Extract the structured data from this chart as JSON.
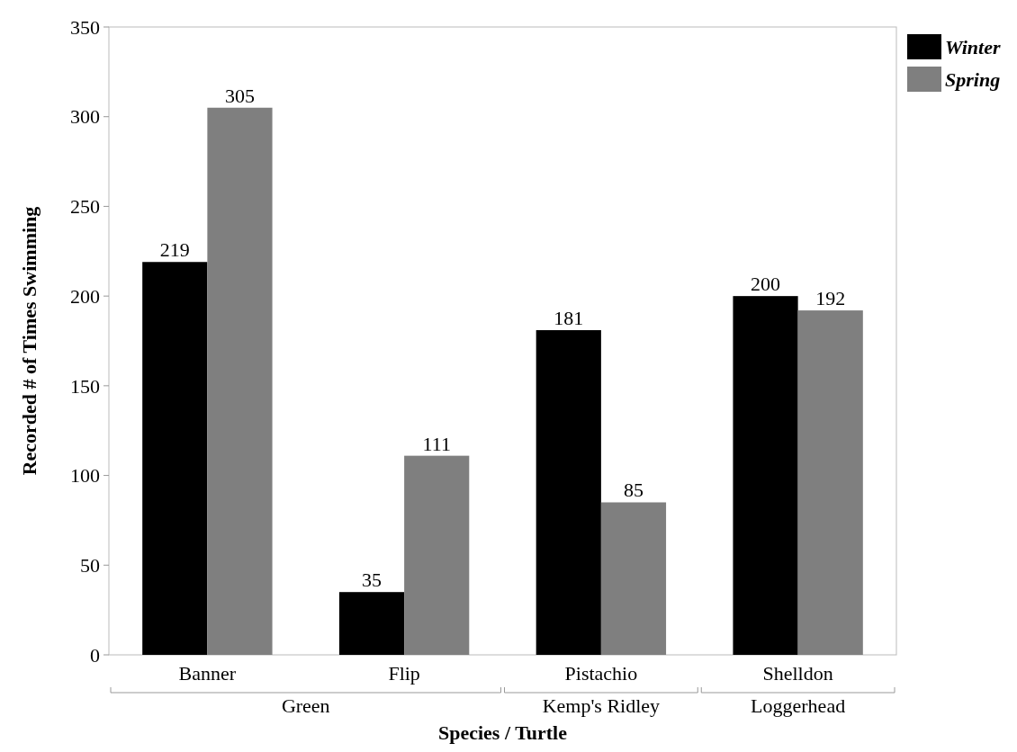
{
  "chart_data": {
    "type": "bar",
    "xlabel": "Species / Turtle",
    "ylabel": "Recorded # of Times Swimming",
    "categories": [
      "Banner",
      "Flip",
      "Pistachio",
      "Shelldon"
    ],
    "series": [
      {
        "name": "Winter",
        "color": "#000000",
        "values": [
          219,
          35,
          181,
          200
        ]
      },
      {
        "name": "Spring",
        "color": "#7f7f7f",
        "values": [
          305,
          111,
          85,
          192
        ]
      }
    ],
    "ylim": [
      0,
      350
    ],
    "yticks": [
      0,
      50,
      100,
      150,
      200,
      250,
      300,
      350
    ],
    "data_labels": true,
    "legend": "top right",
    "grid": false,
    "annotations": [
      "Green",
      "Kemp's Ridley",
      "Loggerhead"
    ]
  }
}
